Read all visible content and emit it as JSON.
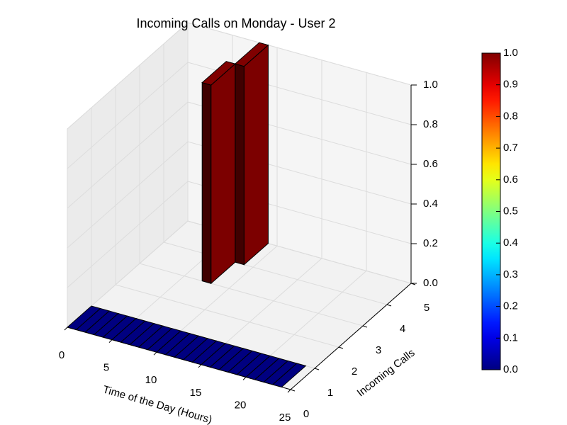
{
  "chart_data": {
    "type": "bar3d",
    "title": "Incoming Calls on Monday - User 2",
    "x_label": "Time of the Day (Hours)",
    "y_label": "Incoming Calls",
    "x": [
      0,
      1,
      2,
      3,
      4,
      5,
      6,
      7,
      8,
      9,
      10,
      11,
      12,
      13,
      14,
      15,
      16,
      17,
      18,
      19,
      20,
      21,
      22,
      23,
      7,
      8
    ],
    "y": [
      0,
      0,
      0,
      0,
      0,
      0,
      0,
      0,
      0,
      0,
      0,
      0,
      0,
      0,
      0,
      0,
      0,
      0,
      0,
      0,
      0,
      0,
      0,
      0,
      3,
      4
    ],
    "values": [
      0,
      0,
      0,
      0,
      0,
      0,
      0,
      0,
      0,
      0,
      0,
      0,
      0,
      0,
      0,
      0,
      0,
      0,
      0,
      0,
      0,
      0,
      0,
      0,
      1,
      1
    ],
    "colormap": "jet",
    "clim": [
      0,
      1
    ],
    "xlim": [
      0,
      25
    ],
    "ylim": [
      0,
      5
    ],
    "zlim": [
      0,
      1
    ],
    "xticks": [
      0,
      5,
      10,
      15,
      20,
      25
    ],
    "yticks": [
      0,
      1,
      2,
      3,
      4,
      5
    ],
    "zticks": [
      {
        "value": 0,
        "label": "0.0"
      },
      {
        "value": 0.2,
        "label": "0.2"
      },
      {
        "value": 0.4,
        "label": "0.4"
      },
      {
        "value": 0.6,
        "label": "0.6"
      },
      {
        "value": 0.8,
        "label": "0.8"
      },
      {
        "value": 1,
        "label": "1.0"
      }
    ],
    "cticks": [
      {
        "value": 0,
        "label": "0.0"
      },
      {
        "value": 0.1,
        "label": "0.1"
      },
      {
        "value": 0.2,
        "label": "0.2"
      },
      {
        "value": 0.3,
        "label": "0.3"
      },
      {
        "value": 0.4,
        "label": "0.4"
      },
      {
        "value": 0.5,
        "label": "0.5"
      },
      {
        "value": 0.6,
        "label": "0.6"
      },
      {
        "value": 0.7,
        "label": "0.7"
      },
      {
        "value": 0.8,
        "label": "0.8"
      },
      {
        "value": 0.9,
        "label": "0.9"
      },
      {
        "value": 1,
        "label": "1.0"
      }
    ],
    "grid": true
  }
}
